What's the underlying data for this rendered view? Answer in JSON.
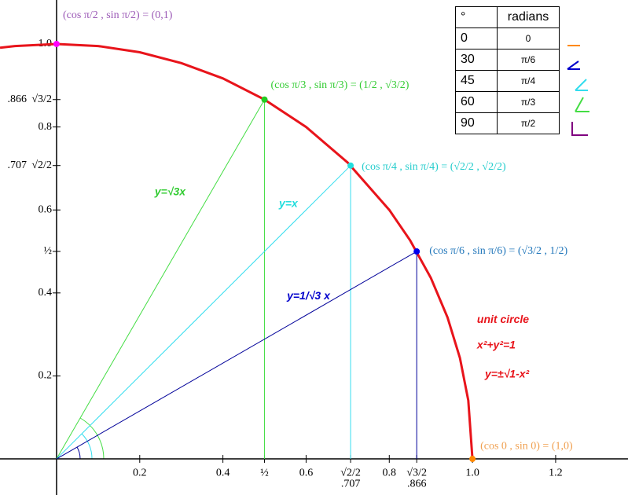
{
  "chart_data": {
    "type": "line",
    "xlim": [
      -0.136,
      1.374
    ],
    "ylim": [
      -0.087,
      1.106
    ],
    "xticks": [
      0.2,
      0.4,
      {
        "value": 0.5,
        "label": "½"
      },
      0.6,
      {
        "value": 0.707,
        "label": "√2/2"
      },
      0.8,
      {
        "value": 0.866,
        "label": "√3/2"
      },
      {
        "value": 1,
        "label": "1.0"
      },
      1.2
    ],
    "x_decimal_labels": [
      {
        "value": 0.707,
        "label": ".707"
      },
      {
        "value": 0.866,
        "label": ".866"
      }
    ],
    "yticks": [
      0.2,
      0.4,
      {
        "value": 0.5,
        "label": "½"
      },
      0.6,
      {
        "value": 0.707,
        "label": "√2/2"
      },
      0.8,
      {
        "value": 0.866,
        "label": "√3/2"
      },
      {
        "value": 1,
        "label": "1.0"
      }
    ],
    "y_decimal_labels": [
      {
        "value": 0.707,
        "label": ".707"
      },
      {
        "value": 0.866,
        "label": ".866"
      }
    ],
    "curve": {
      "color": "#e8141b",
      "x": [
        -0.136,
        -0.1,
        0,
        0.1,
        0.2,
        0.3,
        0.4,
        0.5,
        0.6,
        0.7,
        0.8,
        0.85,
        0.9,
        0.94,
        0.97,
        0.99,
        1.0
      ],
      "values": [
        0.991,
        0.995,
        1,
        0.995,
        0.98,
        0.954,
        0.917,
        0.866,
        0.8,
        0.714,
        0.6,
        0.527,
        0.436,
        0.341,
        0.243,
        0.141,
        0
      ]
    },
    "points": [
      {
        "x": 0,
        "y": 1,
        "color": "#ff00ff",
        "line_color": "#ff00ff",
        "label": "(cos π/2 , sin π/2) = (0,1)",
        "label_color": "#9b59b6"
      },
      {
        "x": 0.5,
        "y": 0.866,
        "color": "#22cc22",
        "line_color": "#44dd44",
        "label": "(cos π/3 , sin π/3) = (1/2 , √3/2)",
        "label_color": "#33cc33"
      },
      {
        "x": 0.707,
        "y": 0.707,
        "color": "#22dddd",
        "line_color": "#33ddee",
        "label": "(cos π/4 , sin π/4) = (√2/2 , √2/2)",
        "label_color": "#22cccc"
      },
      {
        "x": 0.866,
        "y": 0.5,
        "color": "#0000ee",
        "line_color": "#000099",
        "label": "(cos π/6 , sin π/6) = (√3/2 , 1/2)",
        "label_color": "#2277bb"
      },
      {
        "x": 1,
        "y": 0,
        "color": "#ff8800",
        "line_color": "#ff8800",
        "label": "(cos 0 , sin 0) = (1,0)",
        "label_color": "#f0a050"
      }
    ],
    "annotations": [
      {
        "text": "y=√3x",
        "x": 0.236,
        "y": 0.642,
        "color": "#33cc33",
        "size": 17
      },
      {
        "text": "y=x",
        "x": 0.535,
        "y": 0.614,
        "color": "#22dddd",
        "size": 17
      },
      {
        "text": "y=1/√3 x",
        "x": 0.554,
        "y": 0.392,
        "color": "#0000cc",
        "size": 17
      },
      {
        "text": "unit circle",
        "x": 1.011,
        "y": 0.335,
        "color": "#e8141b",
        "size": 22
      },
      {
        "text": "x²+y²=1",
        "x": 1.011,
        "y": 0.273,
        "color": "#e8141b",
        "size": 22
      },
      {
        "text": "y=±√1-x²",
        "x": 1.03,
        "y": 0.203,
        "color": "#e8141b",
        "size": 18
      }
    ]
  },
  "table": {
    "header": [
      "°",
      "radians"
    ],
    "rows": [
      [
        "0",
        "0"
      ],
      [
        "30",
        "π/6"
      ],
      [
        "45",
        "π/4"
      ],
      [
        "60",
        "π/3"
      ],
      [
        "90",
        "π/2"
      ]
    ]
  }
}
